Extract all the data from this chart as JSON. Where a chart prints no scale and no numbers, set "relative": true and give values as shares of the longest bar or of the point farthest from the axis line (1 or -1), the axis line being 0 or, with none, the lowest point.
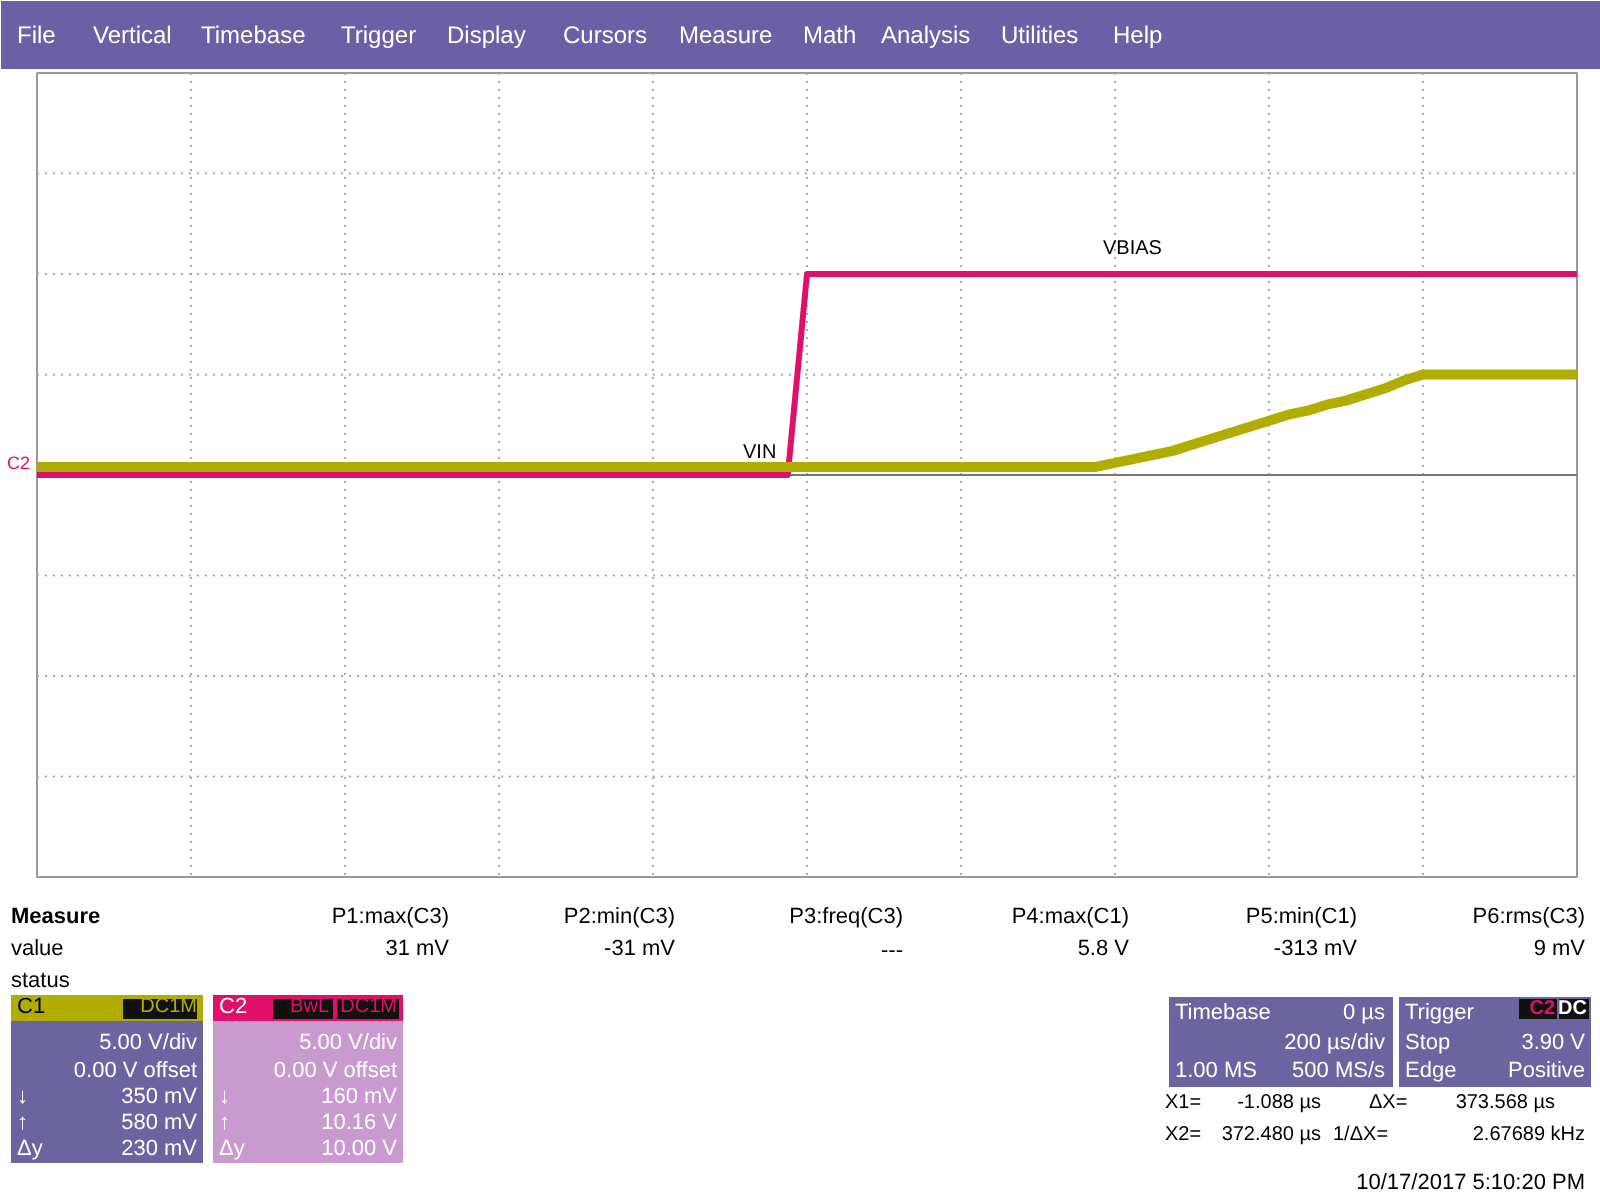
{
  "chart_data": {
    "type": "line",
    "relative": true,
    "grid": true,
    "categories": [
      null,
      null,
      null,
      null,
      null,
      null,
      null,
      null,
      null,
      null,
      null,
      null,
      null,
      null,
      null,
      null,
      null,
      null,
      null,
      null,
      null,
      null,
      null,
      null,
      null,
      null,
      null,
      null,
      null,
      null,
      null,
      null,
      null,
      null,
      null,
      null,
      null,
      null,
      null,
      null,
      null,
      null,
      null,
      null,
      null,
      null,
      null,
      null,
      null,
      null,
      null,
      null,
      null,
      null,
      null,
      null,
      null,
      null,
      null,
      null,
      null,
      null,
      null,
      null,
      null,
      null,
      null,
      null,
      null,
      null,
      null,
      null,
      null,
      null,
      null,
      null,
      null,
      null,
      null,
      null,
      null
    ],
    "series": [
      {
        "color": "#b0ad00",
        "values": [
          0.04,
          0.04,
          0.04,
          0.04,
          0.04,
          0.04,
          0.04,
          0.04,
          0.04,
          0.04,
          0.04,
          0.04,
          0.04,
          0.04,
          0.04,
          0.04,
          0.04,
          0.04,
          0.04,
          0.04,
          0.04,
          0.04,
          0.04,
          0.04,
          0.04,
          0.04,
          0.04,
          0.04,
          0.04,
          0.04,
          0.04,
          0.04,
          0.04,
          0.04,
          0.04,
          0.04,
          0.04,
          0.04,
          0.04,
          0.04,
          0.04,
          0.04,
          0.04,
          0.04,
          0.04,
          0.04,
          0.04,
          0.04,
          0.04,
          0.04,
          0.04,
          0.04,
          0.04,
          0.04,
          0.04,
          0.04,
          0.06,
          0.08,
          0.1,
          0.12,
          0.15,
          0.18,
          0.21,
          0.24,
          0.27,
          0.3,
          0.32,
          0.35,
          0.37,
          0.4,
          0.43,
          0.47,
          0.5,
          0.5,
          0.5,
          0.5,
          0.5,
          0.5,
          0.5,
          0.5,
          0.5
        ]
      },
      {
        "color": "#e0106a",
        "values": [
          0.0,
          0.0,
          0.0,
          0.0,
          0.0,
          0.0,
          0.0,
          0.0,
          0.0,
          0.0,
          0.0,
          0.0,
          0.0,
          0.0,
          0.0,
          0.0,
          0.0,
          0.0,
          0.0,
          0.0,
          0.0,
          0.0,
          0.0,
          0.0,
          0.0,
          0.0,
          0.0,
          0.0,
          0.0,
          0.0,
          0.0,
          0.0,
          0.0,
          0.0,
          0.0,
          0.0,
          0.0,
          0.0,
          0.0,
          0.0,
          1.0,
          1.0,
          1.0,
          1.0,
          1.0,
          1.0,
          1.0,
          1.0,
          1.0,
          1.0,
          1.0,
          1.0,
          1.0,
          1.0,
          1.0,
          1.0,
          1.0,
          1.0,
          1.0,
          1.0,
          1.0,
          1.0,
          1.0,
          1.0,
          1.0,
          1.0,
          1.0,
          1.0,
          1.0,
          1.0,
          1.0,
          1.0,
          1.0,
          1.0,
          1.0,
          1.0,
          1.0,
          1.0,
          1.0,
          1.0,
          1.0
        ]
      }
    ],
    "annotations": [
      "File",
      "Vertical",
      "Timebase",
      "Trigger",
      "Display",
      "Cursors",
      "Measure",
      "Math",
      "Analysis",
      "Utilities",
      "Help",
      "Measure",
      "value",
      "status",
      "P1:max(C3)",
      "31 mV",
      "P2:min(C3)",
      "-31 mV",
      "P3:freq(C3)",
      "---",
      "P4:max(C1)",
      "5.8 V",
      "P5:min(C1)",
      "-313 mV",
      "P6:rms(C3)",
      "9 mV",
      "C1",
      "DC1M",
      "5.00 V/div",
      "0.00 V offset",
      "↓",
      "350 mV",
      "↑",
      "580 mV",
      "Δy",
      "230 mV",
      "C2",
      "BwL",
      "DC1M",
      "5.00 V/div",
      "0.00 V offset",
      "↓",
      "160 mV",
      "↑",
      "10.16 V",
      "Δy",
      "10.00 V",
      "Timebase",
      "0 µs",
      "200 µs/div",
      "1.00 MS",
      "500 MS/s",
      "Trigger",
      "C2",
      "DC",
      "Stop",
      "3.90 V",
      "Edge",
      "Positive",
      "X1=",
      "-1.088 µs",
      "ΔX=",
      "373.568 µs",
      "X2=",
      "372.480 µs",
      "1/ΔX=",
      "2.67689 kHz",
      "10/17/2017 5:10:20 PM",
      "VIN",
      "VBIAS",
      "C2"
    ]
  }
}
